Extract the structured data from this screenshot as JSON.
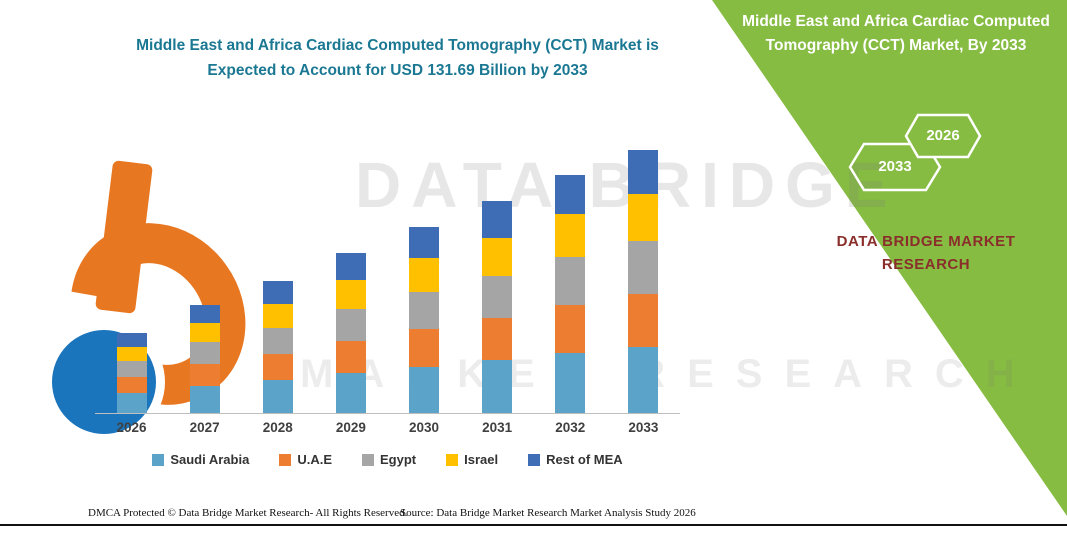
{
  "title": {
    "line1": "Middle East and Africa Cardiac Computed Tomography (CCT) Market is",
    "line2": "Expected to Account for USD 131.69 Billion by 2033"
  },
  "sidebar": {
    "heading": "Middle East and Africa Cardiac Computed Tomography (CCT) Market, By 2033",
    "hex_back_label": "2033",
    "hex_front_label": "2026",
    "brand_line1": "DATA BRIDGE MARKET",
    "brand_line2": "RESEARCH",
    "bg_color": "#86BC42"
  },
  "watermark": {
    "line1": "DATA BRIDGE",
    "line2": "MARKET RESEARCH"
  },
  "footer": {
    "left": "DMCA Protected © Data Bridge Market Research-  All Rights Reserved.",
    "source": "Source: Data Bridge Market Research  Market Analysis Study 2026"
  },
  "chart_data": {
    "type": "bar",
    "stacked": true,
    "title": "Middle East and Africa Cardiac Computed Tomography (CCT) Market is Expected to Account for USD 131.69 Billion by 2033",
    "value_unit": "USD Billion",
    "categories": [
      "2026",
      "2027",
      "2028",
      "2029",
      "2030",
      "2031",
      "2032",
      "2033"
    ],
    "series": [
      {
        "name": "Saudi Arabia",
        "color": "#5BA3C9",
        "values": [
          10,
          13.5,
          16.5,
          20,
          23,
          26.5,
          30,
          33
        ]
      },
      {
        "name": "U.A.E",
        "color": "#ED7D31",
        "values": [
          8,
          11,
          13,
          16,
          19,
          21,
          24,
          26.5
        ]
      },
      {
        "name": "Egypt",
        "color": "#A5A5A5",
        "values": [
          8,
          11,
          13,
          16,
          18.5,
          21,
          24,
          26.5
        ]
      },
      {
        "name": "Israel",
        "color": "#FFC000",
        "values": [
          7,
          9.5,
          12,
          14.5,
          17,
          19,
          21.5,
          23.7
        ]
      },
      {
        "name": "Rest of MEA",
        "color": "#3F6DB5",
        "values": [
          7,
          9,
          11.5,
          13.5,
          15.5,
          18.5,
          19.5,
          21.99
        ]
      }
    ],
    "ylim": [
      0,
      140
    ],
    "legend_position": "bottom",
    "grid": false,
    "total_2033": 131.69
  }
}
